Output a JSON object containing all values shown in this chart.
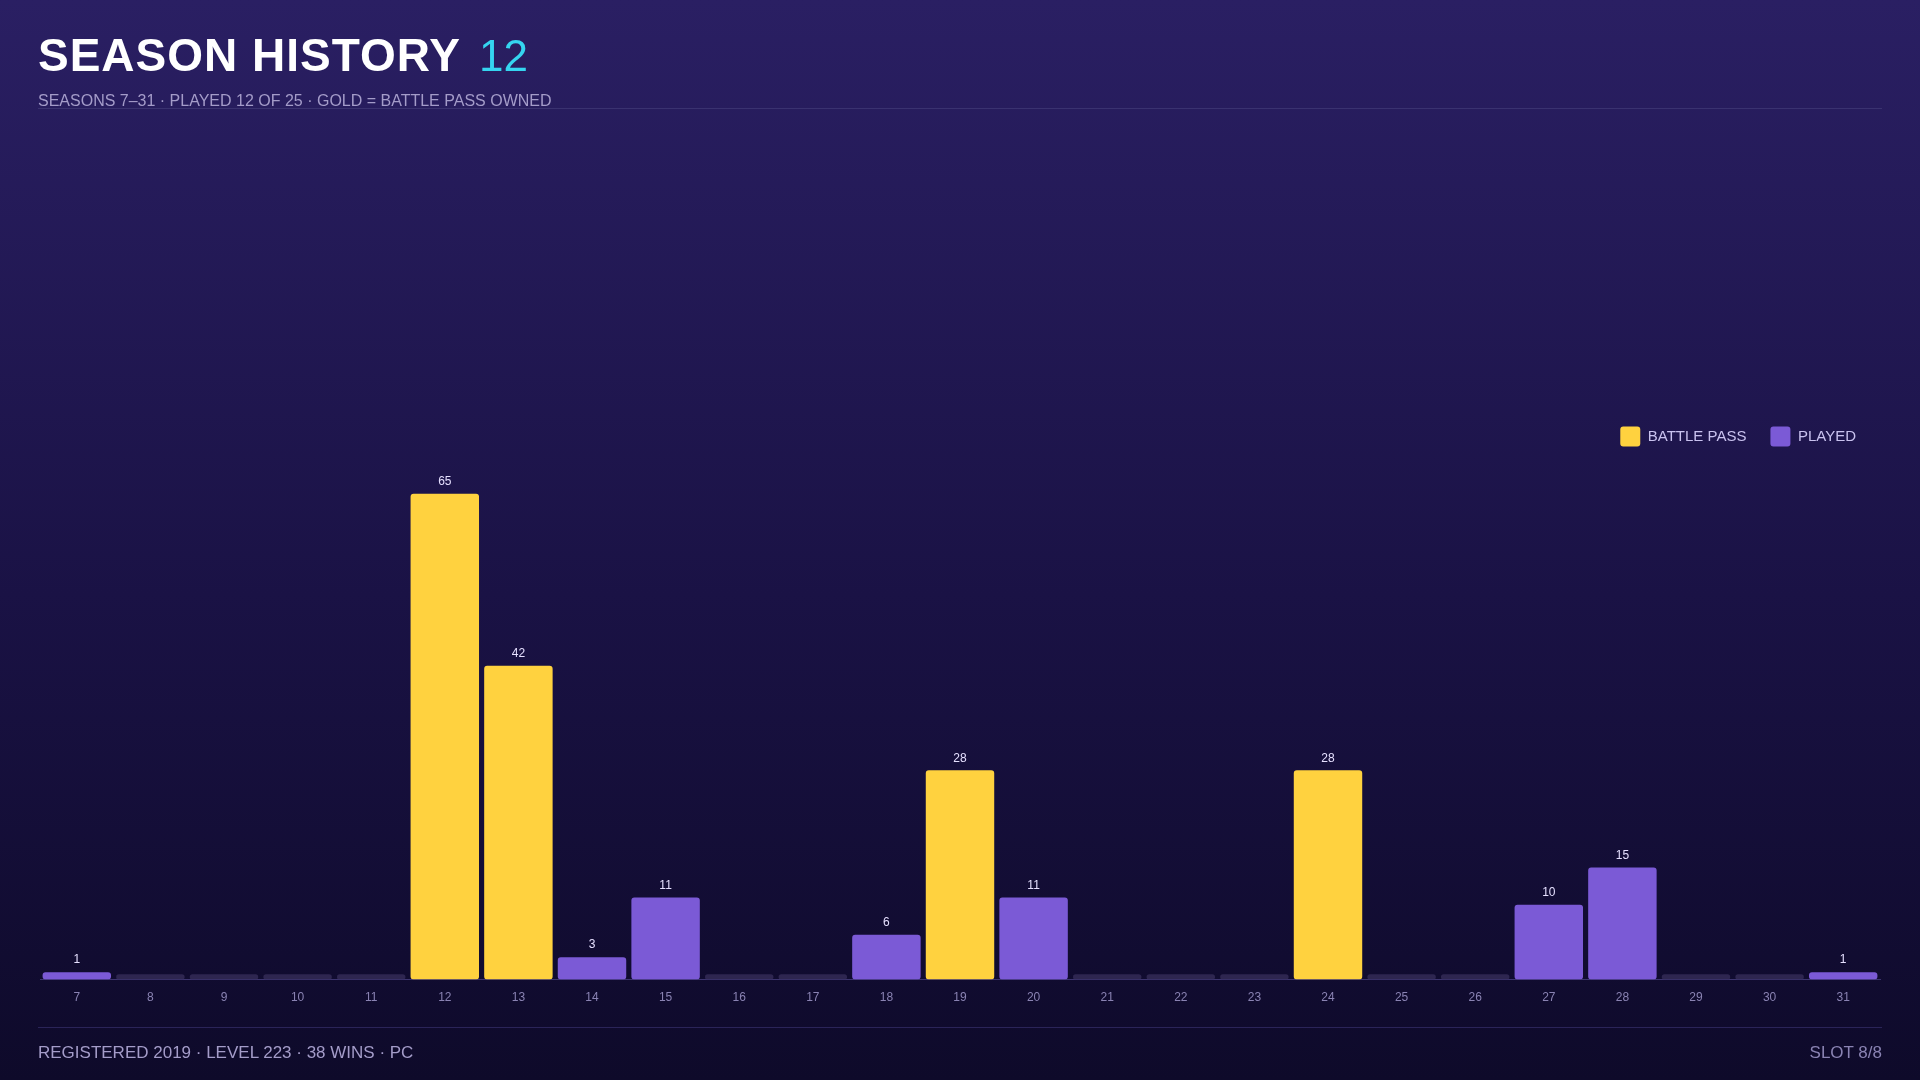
{
  "chart_data": {
    "type": "bar",
    "title": "SEASON HISTORY",
    "subtitle": "SEASONS 7–31 · PLAYED 12 OF 25 · GOLD = BATTLE PASS OWNED",
    "annotations": [
      "12",
      "REGISTERED 2019 · LEVEL 223 · 38 WINS · PC",
      "SLOT 8/8"
    ],
    "categories": [
      "7",
      "8",
      "9",
      "10",
      "11",
      "12",
      "13",
      "14",
      "15",
      "16",
      "17",
      "18",
      "19",
      "20",
      "21",
      "22",
      "23",
      "24",
      "25",
      "26",
      "27",
      "28",
      "29",
      "30",
      "31"
    ],
    "stacked": true,
    "legend": "top right",
    "grid": false,
    "series": [
      {
        "name": "BATTLE PASS",
        "color": "#ffd23f",
        "values": [
          null,
          null,
          null,
          null,
          null,
          65,
          42,
          null,
          null,
          null,
          null,
          null,
          28,
          null,
          null,
          null,
          null,
          28,
          null,
          null,
          null,
          null,
          null,
          null,
          null
        ],
        "value_labels": [
          null,
          null,
          null,
          null,
          null,
          "65",
          "42",
          null,
          null,
          null,
          null,
          null,
          "28",
          null,
          null,
          null,
          null,
          "28",
          null,
          null,
          null,
          null,
          null,
          null,
          null
        ]
      },
      {
        "name": "PLAYED",
        "color": "#7b5ad6",
        "values": [
          1,
          null,
          null,
          null,
          null,
          null,
          null,
          3,
          11,
          null,
          null,
          6,
          null,
          11,
          null,
          null,
          null,
          null,
          null,
          null,
          10,
          15,
          null,
          null,
          1
        ],
        "value_labels": [
          "1",
          null,
          null,
          null,
          null,
          null,
          null,
          "3",
          "11",
          null,
          null,
          "6",
          null,
          "11",
          null,
          null,
          null,
          null,
          null,
          null,
          "10",
          "15",
          null,
          null,
          "1"
        ]
      },
      {
        "color": "#2e2650",
        "values": [
          null,
          0.7,
          0.7,
          0.7,
          0.7,
          null,
          null,
          null,
          null,
          0.7,
          0.7,
          null,
          null,
          null,
          0.7,
          0.7,
          0.7,
          null,
          0.7,
          0.7,
          null,
          null,
          0.7,
          0.7,
          null
        ]
      }
    ]
  }
}
